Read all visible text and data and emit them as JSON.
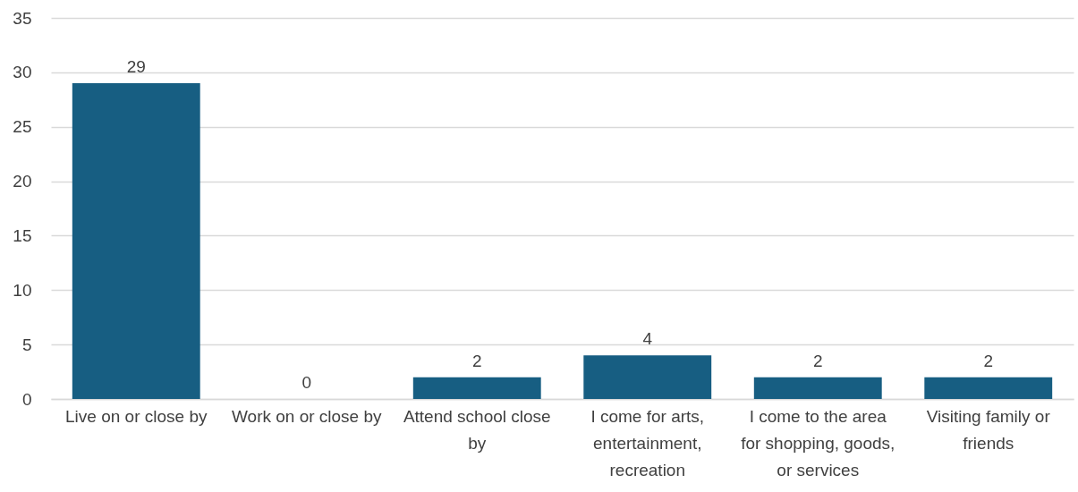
{
  "chart_data": {
    "type": "bar",
    "categories": [
      "Live on or close by",
      "Work on or close by",
      "Attend school close by",
      "I come for arts, entertainment, recreation",
      "I come to the area for shopping, goods, or services",
      "Visiting family or friends"
    ],
    "values": [
      29,
      0,
      2,
      4,
      2,
      2
    ],
    "color": "#175e82",
    "ylim": [
      0,
      35
    ],
    "yticks": [
      0,
      5,
      10,
      15,
      20,
      25,
      30,
      35
    ],
    "grid": "y",
    "data_labels": true
  }
}
